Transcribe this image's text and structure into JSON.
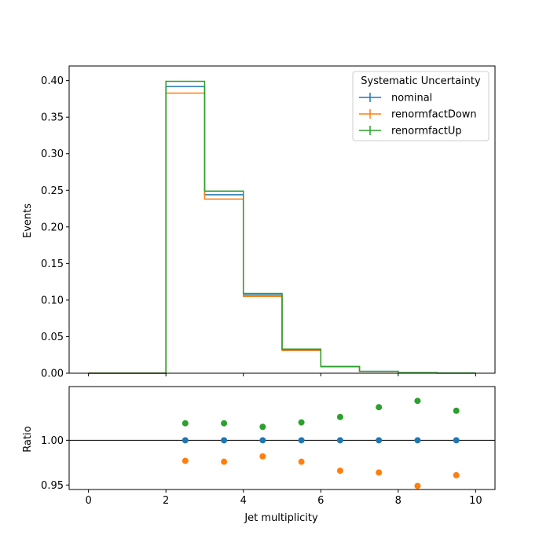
{
  "chart_data": [
    {
      "type": "step",
      "panel": "main",
      "ylabel": "Events",
      "xlim": [
        -0.5,
        10.5
      ],
      "ylim": [
        0.0,
        0.42
      ],
      "yticks": [
        0.0,
        0.05,
        0.1,
        0.15,
        0.2,
        0.25,
        0.3,
        0.35,
        0.4
      ],
      "ytick_labels": [
        "0.00",
        "0.05",
        "0.10",
        "0.15",
        "0.20",
        "0.25",
        "0.30",
        "0.35",
        "0.40"
      ],
      "bin_edges": [
        0,
        1,
        2,
        3,
        4,
        5,
        6,
        7,
        8,
        9,
        10
      ],
      "legend": {
        "title": "Systematic Uncertainty",
        "placement": "top-right"
      },
      "series": [
        {
          "name": "nominal",
          "color": "#1f77b4",
          "values": [
            0.0,
            0.0,
            0.392,
            0.244,
            0.107,
            0.032,
            0.009,
            0.0025,
            0.0008,
            0.0002
          ]
        },
        {
          "name": "renormfactDown",
          "color": "#ff7f0e",
          "values": [
            0.0,
            0.0,
            0.383,
            0.238,
            0.105,
            0.031,
            0.0087,
            0.0024,
            0.00076,
            0.00019
          ]
        },
        {
          "name": "renormfactUp",
          "color": "#2ca02c",
          "values": [
            0.0,
            0.0,
            0.399,
            0.249,
            0.109,
            0.033,
            0.0092,
            0.0026,
            0.00083,
            0.00021
          ]
        }
      ]
    },
    {
      "type": "scatter",
      "panel": "ratio",
      "xlabel": "Jet multiplicity",
      "ylabel": "Ratio",
      "xlim": [
        -0.5,
        10.5
      ],
      "ylim": [
        0.945,
        1.06
      ],
      "xticks": [
        0,
        2,
        4,
        6,
        8,
        10
      ],
      "xtick_labels": [
        "0",
        "2",
        "4",
        "6",
        "8",
        "10"
      ],
      "yticks": [
        0.95,
        1.0
      ],
      "ytick_labels": [
        "0.95",
        "1.00"
      ],
      "reference_line": 1.0,
      "x": [
        2.5,
        3.5,
        4.5,
        5.5,
        6.5,
        7.5,
        8.5,
        9.5
      ],
      "series": [
        {
          "name": "nominal",
          "color": "#1f77b4",
          "values": [
            1.0,
            1.0,
            1.0,
            1.0,
            1.0,
            1.0,
            1.0,
            1.0
          ]
        },
        {
          "name": "renormfactDown",
          "color": "#ff7f0e",
          "values": [
            0.977,
            0.976,
            0.982,
            0.976,
            0.966,
            0.964,
            0.949,
            0.961
          ]
        },
        {
          "name": "renormfactUp",
          "color": "#2ca02c",
          "values": [
            1.019,
            1.019,
            1.015,
            1.02,
            1.026,
            1.037,
            1.044,
            1.033
          ]
        }
      ]
    }
  ]
}
